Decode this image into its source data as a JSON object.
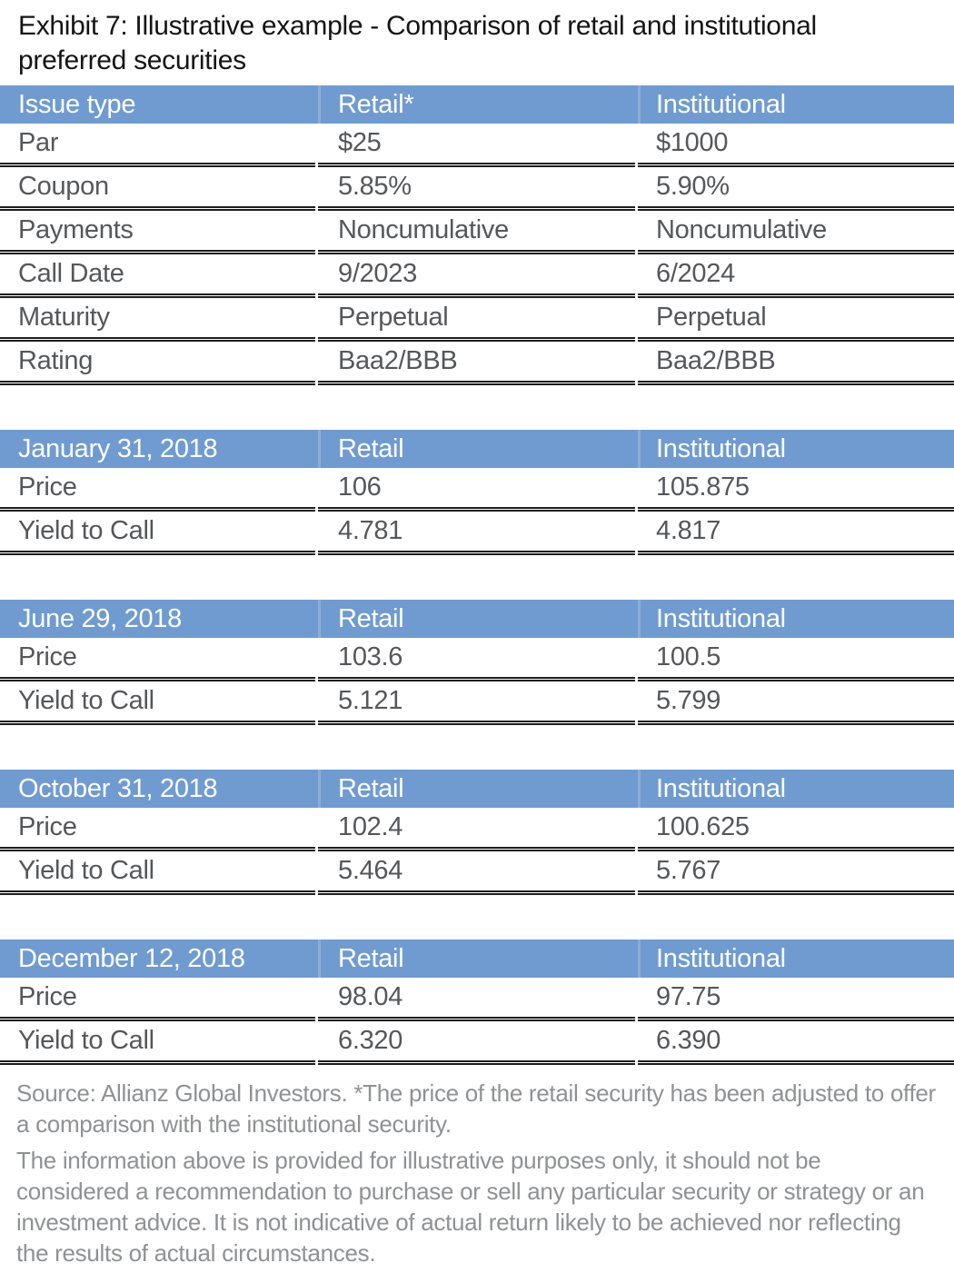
{
  "title": "Exhibit 7: Illustrative example - Comparison of retail and institutional preferred securities",
  "colors": {
    "header_bg": "#6f9bd0",
    "header_divider": "#8aadd9",
    "rule": "#1d1d1d",
    "body_text": "#55575a",
    "title_text": "#141414",
    "footer_text": "#8f9193",
    "page_bg": "#ffffff"
  },
  "tables": [
    {
      "header": [
        "Issue type",
        "Retail*",
        "Institutional"
      ],
      "rows": [
        [
          "Par",
          "$25",
          "$1000"
        ],
        [
          "Coupon",
          "5.85%",
          "5.90%"
        ],
        [
          "Payments",
          "Noncumulative",
          "Noncumulative"
        ],
        [
          "Call Date",
          "9/2023",
          "6/2024"
        ],
        [
          "Maturity",
          "Perpetual",
          "Perpetual"
        ],
        [
          "Rating",
          "Baa2/BBB",
          "Baa2/BBB"
        ]
      ]
    },
    {
      "header": [
        "January 31, 2018",
        "Retail",
        "Institutional"
      ],
      "rows": [
        [
          "Price",
          "106",
          "105.875"
        ],
        [
          "Yield to Call",
          "4.781",
          "4.817"
        ]
      ]
    },
    {
      "header": [
        "June 29, 2018",
        "Retail",
        "Institutional"
      ],
      "rows": [
        [
          "Price",
          "103.6",
          "100.5"
        ],
        [
          "Yield to Call",
          "5.121",
          "5.799"
        ]
      ]
    },
    {
      "header": [
        "October 31, 2018",
        "Retail",
        "Institutional"
      ],
      "rows": [
        [
          "Price",
          "102.4",
          "100.625"
        ],
        [
          "Yield to Call",
          "5.464",
          "5.767"
        ]
      ]
    },
    {
      "header": [
        "December 12, 2018",
        "Retail",
        "Institutional"
      ],
      "rows": [
        [
          "Price",
          "98.04",
          "97.75"
        ],
        [
          "Yield to Call",
          "6.320",
          "6.390"
        ]
      ]
    }
  ],
  "footer": {
    "source_note": "Source: Allianz Global Investors.  *The price of the retail security has been adjusted to offer a comparison with the institutional security.",
    "disclaimer": "The information above is provided for illustrative purposes only, it should not be considered a recommendation to purchase or sell any particular security or strategy or an investment advice. It is not indicative of actual return likely to be achieved nor reflecting the results of actual circumstances."
  }
}
